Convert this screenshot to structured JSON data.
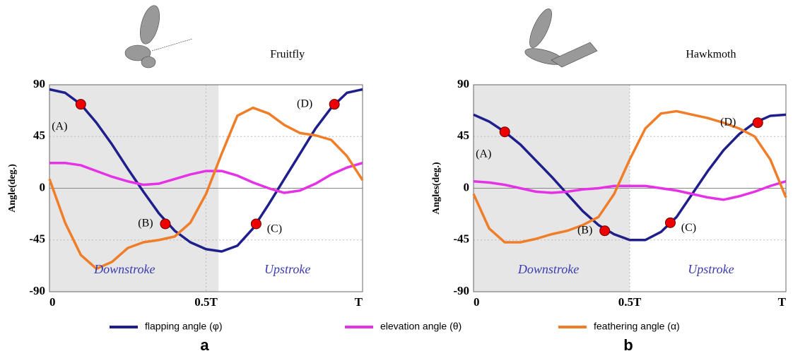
{
  "chart_data": [
    {
      "type": "line",
      "title": "Fruitfly",
      "ylabel": "Angle(deg.)",
      "label": "a",
      "x": [
        0,
        0.05,
        0.1,
        0.15,
        0.2,
        0.25,
        0.3,
        0.35,
        0.4,
        0.45,
        0.5,
        0.55,
        0.6,
        0.65,
        0.7,
        0.75,
        0.8,
        0.85,
        0.9,
        0.95,
        1
      ],
      "series": [
        {
          "name": "flapping angle (φ)",
          "color": "#1f1f8c",
          "values": [
            86,
            83,
            73,
            57,
            38,
            17,
            -3,
            -22,
            -37,
            -47,
            -53,
            -55,
            -50,
            -35,
            -14,
            8,
            30,
            52,
            70,
            83,
            86
          ]
        },
        {
          "name": "elevation angle (θ)",
          "color": "#e632e6",
          "values": [
            22,
            22,
            20,
            15,
            10,
            6,
            3,
            4,
            8,
            12,
            15,
            15,
            11,
            5,
            0,
            -4,
            -2,
            4,
            12,
            18,
            22
          ]
        },
        {
          "name": "feathering angle (α)",
          "color": "#f07d28",
          "values": [
            8,
            -30,
            -58,
            -70,
            -64,
            -52,
            -47,
            -45,
            -42,
            -30,
            -5,
            30,
            63,
            70,
            65,
            55,
            48,
            46,
            42,
            28,
            7
          ]
        }
      ],
      "points": [
        {
          "label": "(A)",
          "x": 0.1,
          "y": 73
        },
        {
          "label": "(B)",
          "x": 0.37,
          "y": -31
        },
        {
          "label": "(C)",
          "x": 0.66,
          "y": -31
        },
        {
          "label": "(D)",
          "x": 0.91,
          "y": 73
        }
      ],
      "annotations": [
        "Downstroke",
        "Upstroke"
      ],
      "shade_range": [
        0,
        0.54
      ],
      "xlim": [
        0,
        1
      ],
      "xticks": [
        0,
        {
          "value": 0.5,
          "label": "0.5T"
        },
        {
          "value": 1,
          "label": "T"
        }
      ],
      "ylim": [
        -90,
        90
      ],
      "yticks": [
        -90,
        -45,
        0,
        45,
        90
      ],
      "grid": true
    },
    {
      "type": "line",
      "title": "Hawkmoth",
      "ylabel": "Angles(deg.)",
      "label": "b",
      "x": [
        0,
        0.05,
        0.1,
        0.15,
        0.2,
        0.25,
        0.3,
        0.35,
        0.4,
        0.45,
        0.5,
        0.55,
        0.6,
        0.65,
        0.7,
        0.75,
        0.8,
        0.85,
        0.9,
        0.95,
        1
      ],
      "series": [
        {
          "color": "#1f1f8c",
          "values": [
            64,
            58,
            49,
            38,
            24,
            10,
            -5,
            -20,
            -32,
            -40,
            -45,
            -45,
            -38,
            -25,
            -5,
            15,
            33,
            47,
            57,
            63,
            64
          ]
        },
        {
          "color": "#e632e6",
          "values": [
            6,
            5,
            3,
            0,
            -3,
            -4,
            -3,
            -1,
            0,
            2,
            2,
            2,
            0,
            -2,
            -5,
            -8,
            -10,
            -7,
            -3,
            2,
            6
          ]
        },
        {
          "color": "#f07d28",
          "values": [
            -5,
            -35,
            -47,
            -47,
            -44,
            -40,
            -37,
            -32,
            -25,
            -5,
            25,
            52,
            65,
            67,
            64,
            61,
            57,
            52,
            45,
            25,
            -8
          ]
        }
      ],
      "points": [
        {
          "label": "(A)",
          "x": 0.1,
          "y": 49
        },
        {
          "label": "(B)",
          "x": 0.42,
          "y": -37
        },
        {
          "label": "(C)",
          "x": 0.63,
          "y": -30
        },
        {
          "label": "(D)",
          "x": 0.91,
          "y": 57
        }
      ],
      "annotations": [
        "Downstroke",
        "Upstroke"
      ],
      "shade_range": [
        0,
        0.5
      ],
      "xlim": [
        0,
        1
      ],
      "xticks": [
        0,
        {
          "value": 0.5,
          "label": "0.5T"
        },
        {
          "value": 1,
          "label": "T"
        }
      ],
      "ylim": [
        -90,
        90
      ],
      "yticks": [
        -90,
        -45,
        0,
        45,
        90
      ],
      "grid": true
    }
  ]
}
